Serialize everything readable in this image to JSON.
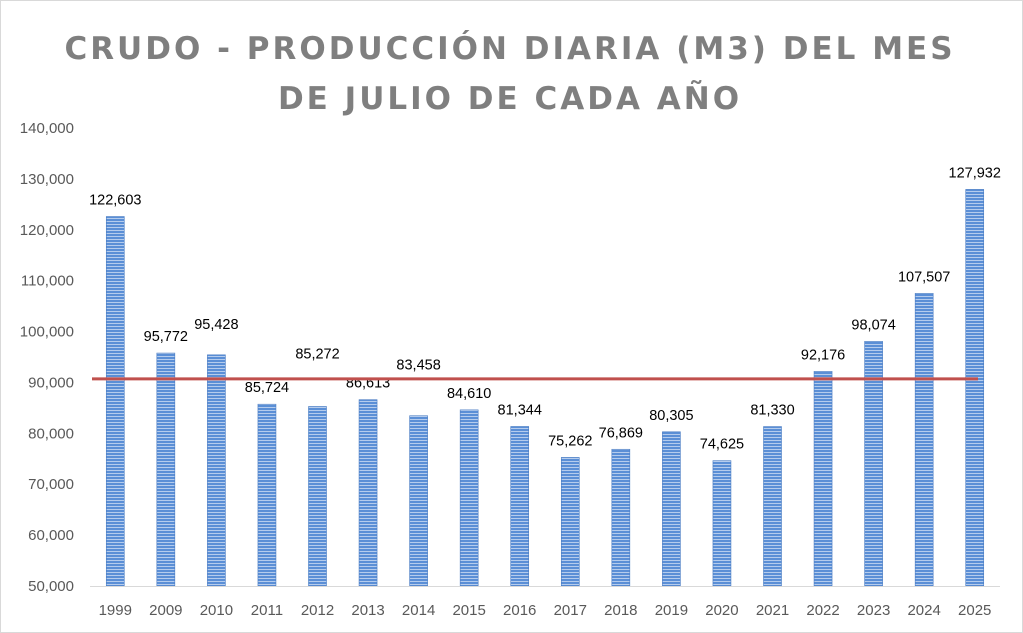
{
  "chart_data": {
    "type": "bar",
    "title_lines": [
      "CRUDO - PRODUCCIÓN DIARIA (M3) DEL MES",
      "DE JULIO DE CADA AÑO"
    ],
    "categories": [
      "1999",
      "2009",
      "2010",
      "2011",
      "2012",
      "2013",
      "2014",
      "2015",
      "2016",
      "2017",
      "2018",
      "2019",
      "2020",
      "2021",
      "2022",
      "2023",
      "2024",
      "2025"
    ],
    "values": [
      122603,
      95772,
      95428,
      85724,
      85272,
      86613,
      83458,
      84610,
      81344,
      75262,
      76869,
      80305,
      74625,
      81330,
      92176,
      98074,
      107507,
      127932
    ],
    "value_labels": [
      "122,603",
      "95,772",
      "95,428",
      "85,724",
      "85,272",
      "86,613",
      "83,458",
      "84,610",
      "81,344",
      "75,262",
      "76,869",
      "80,305",
      "74,625",
      "81,330",
      "92,176",
      "98,074",
      "107,507",
      "127,932"
    ],
    "y_ticks": [
      50000,
      60000,
      70000,
      80000,
      90000,
      100000,
      110000,
      120000,
      130000,
      140000
    ],
    "y_tick_labels": [
      "50,000",
      "60,000",
      "70,000",
      "80,000",
      "90,000",
      "100,000",
      "110,000",
      "120,000",
      "130,000",
      "140,000"
    ],
    "ylim": [
      50000,
      140000
    ],
    "reference_line": {
      "value": 90700,
      "color": "#c0504d"
    },
    "bar_color": "#5b8fd6",
    "bar_stripe_color": "#ffffff",
    "axis_color": "#d9d9d9",
    "xlabel": "",
    "ylabel": ""
  }
}
